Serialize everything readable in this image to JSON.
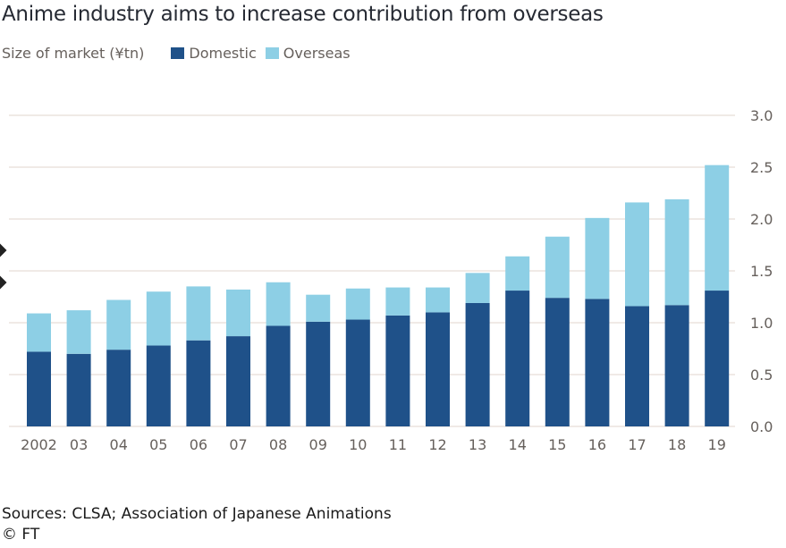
{
  "title": "Anime industry aims to increase contribution from overseas",
  "subtitle": "Size of market (¥tn)",
  "legend": [
    {
      "label": "Domestic",
      "color": "#1f5189"
    },
    {
      "label": "Overseas",
      "color": "#8dcfe5"
    }
  ],
  "source": "Sources: CLSA; Association of Japanese Animations",
  "copyright": "© FT",
  "chart_data": {
    "type": "bar",
    "stacked": true,
    "title": "Anime industry aims to increase contribution from overseas",
    "subtitle": "Size of market (¥tn)",
    "xlabel": "",
    "ylabel": "Size of market (¥tn)",
    "categories": [
      "2002",
      "03",
      "04",
      "05",
      "06",
      "07",
      "08",
      "09",
      "10",
      "11",
      "12",
      "13",
      "14",
      "15",
      "16",
      "17",
      "18",
      "19"
    ],
    "series": [
      {
        "name": "Domestic",
        "color": "#1f5189",
        "values": [
          0.72,
          0.7,
          0.74,
          0.78,
          0.83,
          0.87,
          0.97,
          1.01,
          1.03,
          1.07,
          1.1,
          1.19,
          1.31,
          1.24,
          1.23,
          1.16,
          1.17,
          1.31
        ]
      },
      {
        "name": "Overseas",
        "color": "#8dcfe5",
        "values": [
          0.37,
          0.42,
          0.48,
          0.52,
          0.52,
          0.45,
          0.42,
          0.26,
          0.3,
          0.27,
          0.24,
          0.29,
          0.33,
          0.59,
          0.78,
          1.0,
          1.02,
          1.21
        ]
      }
    ],
    "yticks": [
      "0.0",
      "0.5",
      "1.0",
      "1.5",
      "2.0",
      "2.5",
      "3.0"
    ],
    "ylim": [
      0,
      3.0
    ],
    "grid": true,
    "yaxis_position": "right",
    "legend_position": "top-left"
  }
}
